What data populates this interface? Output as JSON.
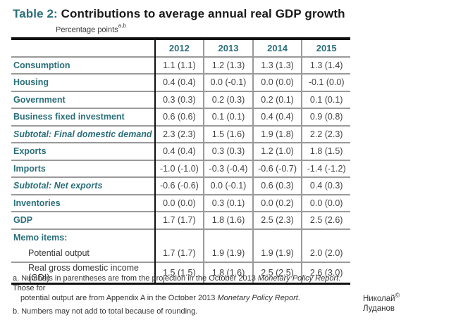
{
  "title": {
    "label": "Table 2:",
    "text": "Contributions to average annual real GDP growth"
  },
  "subtitle": {
    "text": "Percentage points",
    "superscript": "a,b"
  },
  "table": {
    "columns": [
      "2012",
      "2013",
      "2014",
      "2015"
    ],
    "rows": [
      {
        "label": "Consumption",
        "style": "bold",
        "values": [
          "1.1 (1.1)",
          "1.2 (1.3)",
          "1.3 (1.3)",
          "1.3 (1.4)"
        ]
      },
      {
        "label": "Housing",
        "style": "bold",
        "values": [
          "0.4 (0.4)",
          "0.0 (-0.1)",
          "0.0 (0.0)",
          "-0.1 (0.0)"
        ]
      },
      {
        "label": "Government",
        "style": "bold",
        "values": [
          "0.3 (0.3)",
          "0.2 (0.3)",
          "0.2 (0.1)",
          "0.1 (0.1)"
        ]
      },
      {
        "label": "Business fixed investment",
        "style": "bold",
        "values": [
          "0.6 (0.6)",
          "0.1 (0.1)",
          "0.4 (0.4)",
          "0.9 (0.8)"
        ]
      },
      {
        "label": "Subtotal: Final domestic demand",
        "style": "subtotal",
        "values": [
          "2.3 (2.3)",
          "1.5 (1.6)",
          "1.9 (1.8)",
          "2.2 (2.3)"
        ]
      },
      {
        "label": "Exports",
        "style": "bold",
        "values": [
          "0.4 (0.4)",
          "0.3 (0.3)",
          "1.2 (1.0)",
          "1.8 (1.5)"
        ]
      },
      {
        "label": "Imports",
        "style": "bold",
        "values": [
          "-1.0 (-1.0)",
          "-0.3 (-0.4)",
          "-0.6 (-0.7)",
          "-1.4 (-1.2)"
        ]
      },
      {
        "label": "Subtotal: Net exports",
        "style": "subtotal",
        "values": [
          "-0.6 (-0.6)",
          "0.0 (-0.1)",
          "0.6 (0.3)",
          "0.4 (0.3)"
        ]
      },
      {
        "label": "Inventories",
        "style": "bold",
        "values": [
          "0.0 (0.0)",
          "0.3 (0.1)",
          "0.0 (0.2)",
          "0.0 (0.0)"
        ]
      },
      {
        "label": "GDP",
        "style": "bold",
        "values": [
          "1.7 (1.7)",
          "1.8 (1.6)",
          "2.5 (2.3)",
          "2.5 (2.6)"
        ]
      }
    ],
    "memo": {
      "label": "Memo items:",
      "rows": [
        {
          "label": "Potential output",
          "values": [
            "1.7 (1.7)",
            "1.9 (1.9)",
            "1.9 (1.9)",
            "2.0 (2.0)"
          ]
        },
        {
          "label": "Real gross domestic income (GDI)",
          "values": [
            "1.5 (1.5)",
            "1.8 (1.6)",
            "2.5 (2.5)",
            "2.6 (3.0)"
          ]
        }
      ]
    }
  },
  "footnotes": {
    "a": {
      "prefix": "a. Numbers in parentheses are from the projection in the October 2013 ",
      "italic1": "Monetary Policy Report",
      "mid": ". Those for",
      "line2_prefix": "potential output are from Appendix A in the October 2013 ",
      "italic2": "Monetary Policy Report",
      "line2_suffix": "."
    },
    "b": "b. Numbers may not add to total because of rounding."
  },
  "credit": {
    "line1": "Николай",
    "symbol": "©",
    "line2": "Луданов"
  },
  "colors": {
    "accent_teal": "#2a6f7a",
    "rule_dark": "#111111",
    "rule_gray": "#9a9a9a"
  }
}
